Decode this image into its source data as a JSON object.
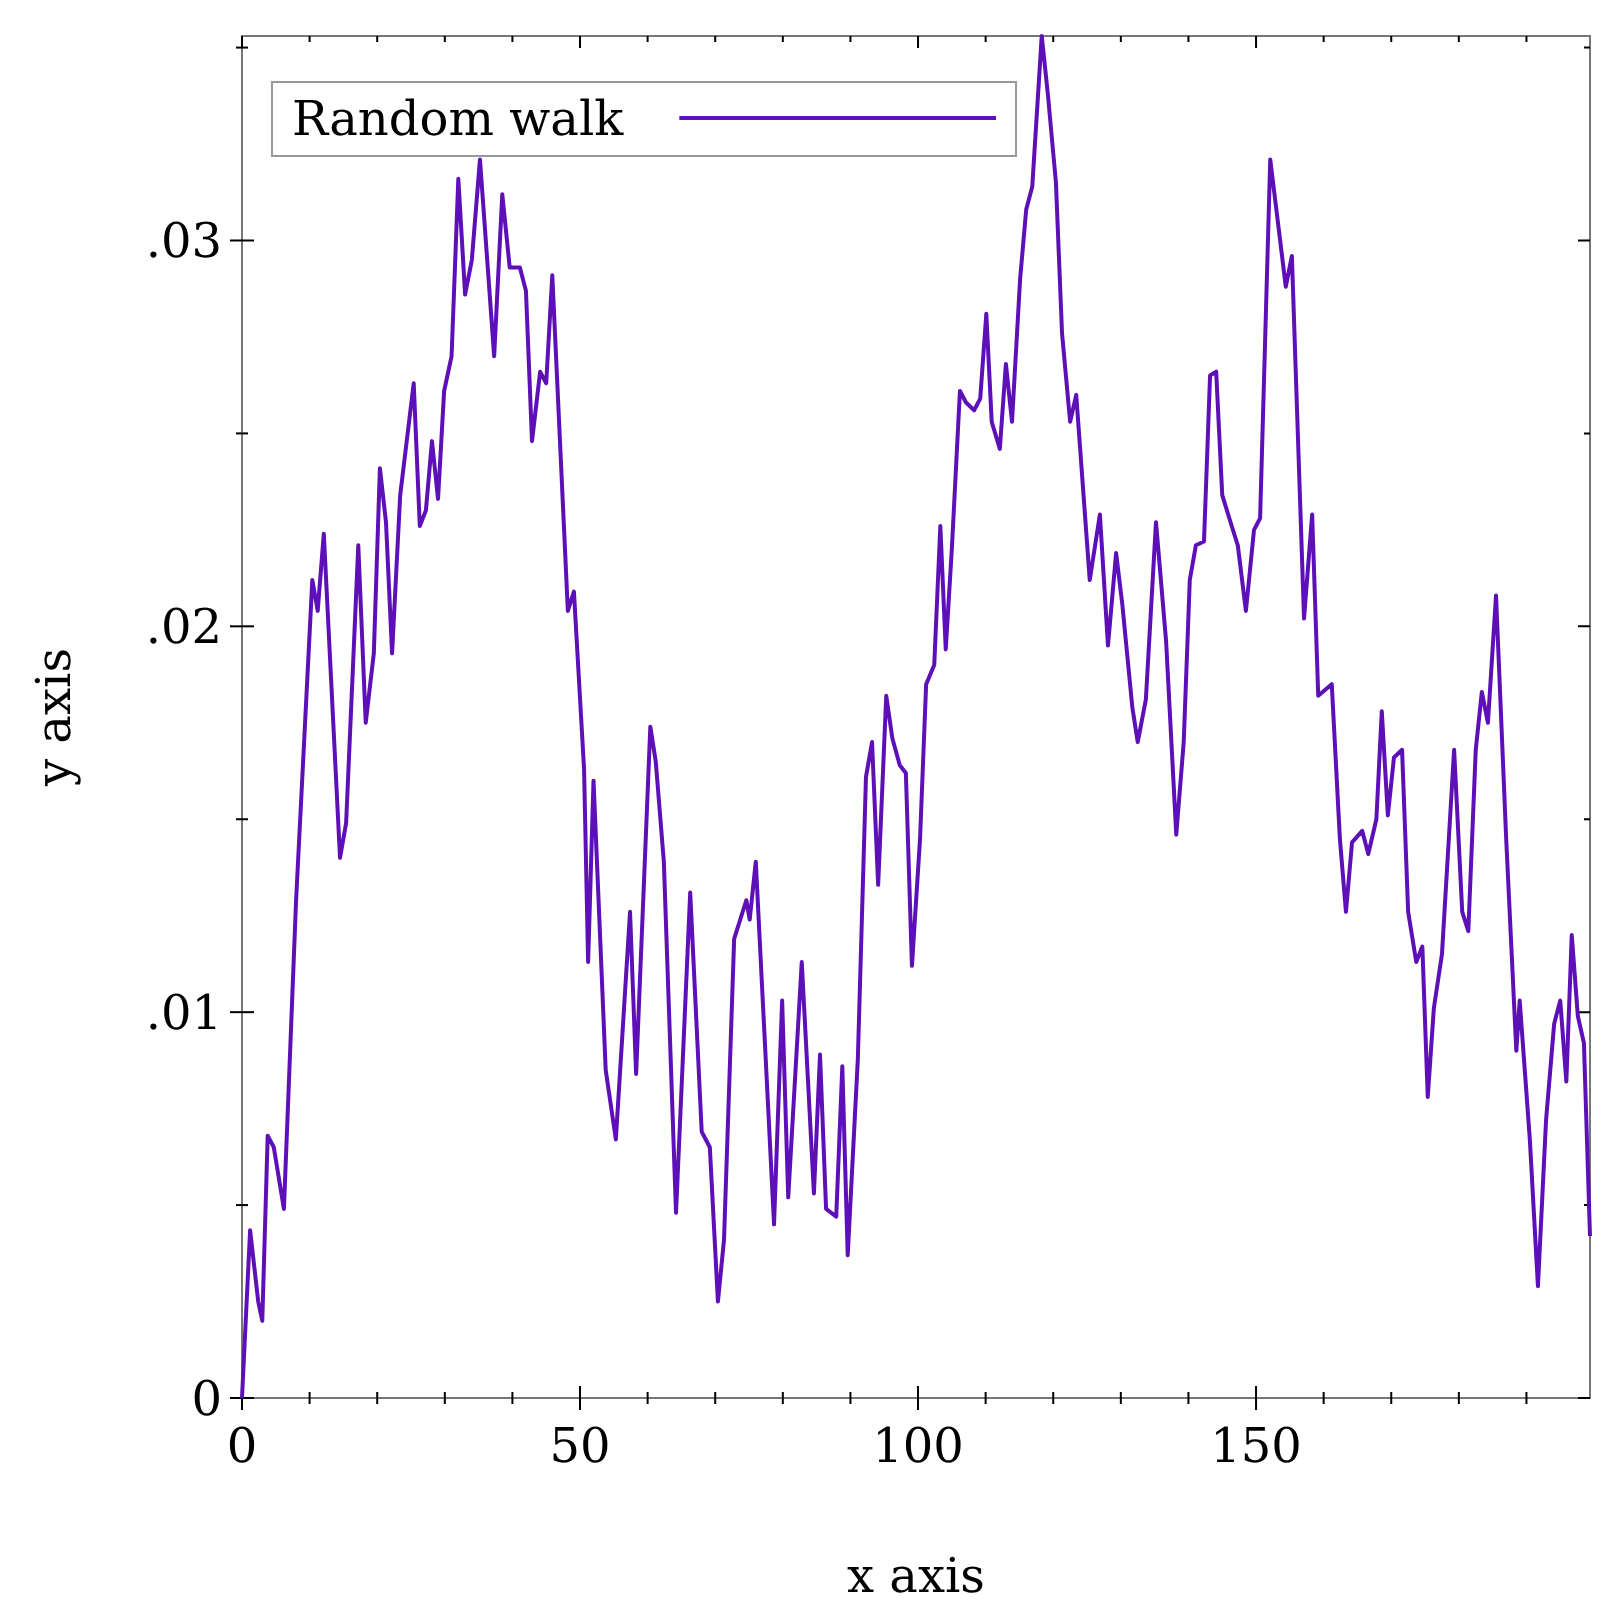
{
  "chart_data": {
    "type": "line",
    "xlabel": "x axis",
    "ylabel": "y axis",
    "legend": "top left",
    "grid": false,
    "marker": "none",
    "line_style": "solid",
    "xlim": [
      0,
      199.4
    ],
    "ylim": [
      0,
      0.0353
    ],
    "xticks": [
      0,
      {
        "value": 10,
        "label": null
      },
      {
        "value": 20,
        "label": null
      },
      {
        "value": 30,
        "label": null
      },
      {
        "value": 40,
        "label": null
      },
      50,
      {
        "value": 60,
        "label": null
      },
      {
        "value": 70,
        "label": null
      },
      {
        "value": 80,
        "label": null
      },
      {
        "value": 90,
        "label": null
      },
      100,
      {
        "value": 110,
        "label": null
      },
      {
        "value": 120,
        "label": null
      },
      {
        "value": 130,
        "label": null
      },
      {
        "value": 140,
        "label": null
      },
      150,
      {
        "value": 160,
        "label": null
      },
      {
        "value": 170,
        "label": null
      },
      {
        "value": 180,
        "label": null
      },
      {
        "value": 190,
        "label": null
      }
    ],
    "yticks": [
      0,
      {
        "value": 0.005,
        "label": null
      },
      {
        "value": 0.01,
        "label": ".01"
      },
      {
        "value": 0.015,
        "label": null
      },
      {
        "value": 0.02,
        "label": ".02"
      },
      {
        "value": 0.025,
        "label": null
      },
      {
        "value": 0.03,
        "label": ".03"
      },
      {
        "value": 0.035,
        "label": null
      }
    ],
    "series": [
      {
        "name": "Random walk",
        "color": "#5e10b8",
        "x": [
          0,
          1.2,
          2.4,
          3,
          3.8,
          4.7,
          6.2,
          8,
          10.4,
          11.2,
          12.1,
          14.5,
          15.4,
          17.2,
          18.3,
          19.5,
          20.4,
          21.3,
          22.2,
          23.4,
          25.4,
          26.3,
          27.2,
          28.1,
          29,
          29.9,
          31,
          32,
          33,
          34,
          35.2,
          37.3,
          38.5,
          39.6,
          41.1,
          42,
          42.9,
          44.1,
          45,
          45.9,
          48.2,
          49.1,
          50.6,
          51.2,
          52,
          53.8,
          55.3,
          57.4,
          58.3,
          60.4,
          61.2,
          62.4,
          64.2,
          66.3,
          68,
          69.2,
          70.4,
          71.3,
          72.8,
          74.6,
          75.1,
          76,
          78.7,
          79.9,
          80.8,
          82.8,
          84.6,
          85.5,
          86.4,
          87.9,
          88.8,
          89.6,
          91.1,
          92.3,
          93.2,
          94.1,
          95.3,
          96.2,
          97.3,
          98.2,
          99.1,
          100.3,
          101.2,
          102.4,
          103.3,
          104.1,
          105,
          106.2,
          107.1,
          108.3,
          109.2,
          110.1,
          110.9,
          112.1,
          113,
          113.9,
          115.1,
          116,
          116.9,
          118.3,
          119.2,
          120.4,
          121.3,
          122.5,
          123.4,
          125.4,
          126.9,
          128.1,
          129.3,
          130.2,
          131.7,
          132.5,
          133.7,
          135.2,
          136.7,
          138.2,
          139.3,
          140.2,
          141.1,
          142.3,
          143.2,
          144.1,
          145,
          146.4,
          147.3,
          148.5,
          149.7,
          150.6,
          152.1,
          154.4,
          155.3,
          157.1,
          158.3,
          159.2,
          161.2,
          162.4,
          163.3,
          164.2,
          165.7,
          166.6,
          167.8,
          168.6,
          169.5,
          170.4,
          171.6,
          172.5,
          173.7,
          174.6,
          175.4,
          176.3,
          177.5,
          179.3,
          180.5,
          181.4,
          182.5,
          183.4,
          184.3,
          185.5,
          187,
          188.5,
          189,
          190.5,
          191.7,
          192.9,
          194.1,
          195,
          195.9,
          196.7,
          197.6,
          198.5,
          199.4
        ],
        "values": [
          0,
          0.00435,
          0.0025,
          0.002,
          0.0068,
          0.0065,
          0.0049,
          0.0129,
          0.0212,
          0.0204,
          0.0224,
          0.014,
          0.0149,
          0.0221,
          0.0175,
          0.0193,
          0.0241,
          0.0227,
          0.0193,
          0.0234,
          0.0263,
          0.0226,
          0.023,
          0.0248,
          0.0233,
          0.0261,
          0.027,
          0.0316,
          0.0286,
          0.0295,
          0.0321,
          0.027,
          0.0312,
          0.0293,
          0.0293,
          0.0287,
          0.0248,
          0.0266,
          0.0263,
          0.0291,
          0.0204,
          0.0209,
          0.0163,
          0.0113,
          0.016,
          0.0085,
          0.0067,
          0.0126,
          0.0084,
          0.0174,
          0.0165,
          0.0139,
          0.0048,
          0.0131,
          0.0069,
          0.0065,
          0.0025,
          0.0041,
          0.0119,
          0.0129,
          0.0124,
          0.0139,
          0.0045,
          0.0103,
          0.0052,
          0.0113,
          0.0053,
          0.0089,
          0.0049,
          0.0047,
          0.0086,
          0.0037,
          0.0088,
          0.0161,
          0.017,
          0.0133,
          0.0182,
          0.0171,
          0.0164,
          0.0162,
          0.0112,
          0.0145,
          0.0185,
          0.019,
          0.0226,
          0.0194,
          0.022,
          0.0261,
          0.0258,
          0.0256,
          0.0259,
          0.0281,
          0.0253,
          0.0246,
          0.0268,
          0.0253,
          0.029,
          0.0308,
          0.0314,
          0.0353,
          0.0338,
          0.0315,
          0.0276,
          0.0253,
          0.026,
          0.0212,
          0.0229,
          0.0195,
          0.0219,
          0.0206,
          0.0179,
          0.017,
          0.0181,
          0.0227,
          0.0196,
          0.0146,
          0.017,
          0.0212,
          0.0221,
          0.0222,
          0.0265,
          0.0266,
          0.0234,
          0.0226,
          0.0221,
          0.0204,
          0.0225,
          0.0228,
          0.0321,
          0.0288,
          0.0296,
          0.0202,
          0.0229,
          0.0182,
          0.0185,
          0.0145,
          0.0126,
          0.0144,
          0.0147,
          0.0141,
          0.015,
          0.0178,
          0.0151,
          0.0166,
          0.0168,
          0.0126,
          0.0113,
          0.0117,
          0.0078,
          0.0101,
          0.0115,
          0.0168,
          0.0126,
          0.0121,
          0.0168,
          0.0183,
          0.0175,
          0.0208,
          0.0145,
          0.009,
          0.0103,
          0.0067,
          0.0029,
          0.0072,
          0.0097,
          0.0103,
          0.0082,
          0.012,
          0.0099,
          0.0092,
          0.0042
        ]
      }
    ]
  }
}
